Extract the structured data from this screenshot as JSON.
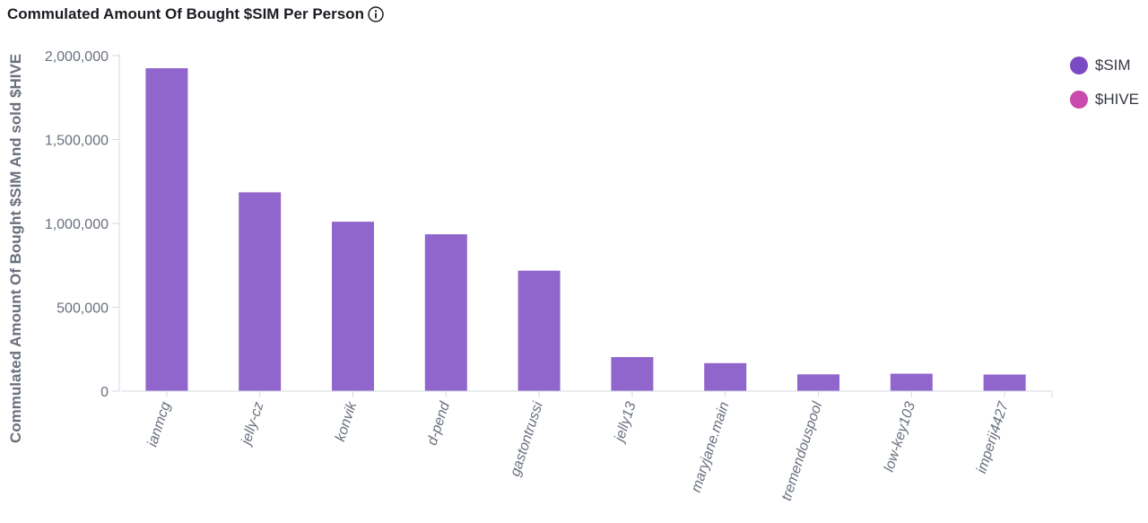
{
  "title": "Commulated Amount Of Bought $SIM Per Person",
  "info_icon": "info-icon",
  "colors": {
    "sim": "#9166cc",
    "hive": "#c94aaa",
    "axis": "#d3dae6",
    "text": "#69707d"
  },
  "legend": [
    {
      "label": "$SIM",
      "color": "#7b4bc4"
    },
    {
      "label": "$HIVE",
      "color": "#c94aaa"
    }
  ],
  "chart_data": {
    "type": "bar",
    "ylabel": "Commulated Amount Of Bought $SIM And sold $HIVE",
    "ylim": [
      0,
      2000000
    ],
    "yticks": [
      0,
      500000,
      1000000,
      1500000,
      2000000
    ],
    "yticklabels": [
      "0",
      "500,000",
      "1,000,000",
      "1,500,000",
      "2,000,000"
    ],
    "categories": [
      "ianmcg",
      "jelly-cz",
      "konvik",
      "d-pend",
      "gastontrussi",
      "jelly13",
      "maryjane.main",
      "tremendouspool",
      "low-key103",
      "imperij4427"
    ],
    "series": [
      {
        "name": "$SIM",
        "values": [
          1925000,
          1185000,
          1010000,
          935000,
          718000,
          203000,
          167000,
          100000,
          104000,
          99000
        ]
      },
      {
        "name": "$HIVE",
        "values": [
          0,
          0,
          0,
          0,
          0,
          0,
          0,
          0,
          0,
          0
        ]
      }
    ],
    "legend": "top-right",
    "grid": false
  }
}
